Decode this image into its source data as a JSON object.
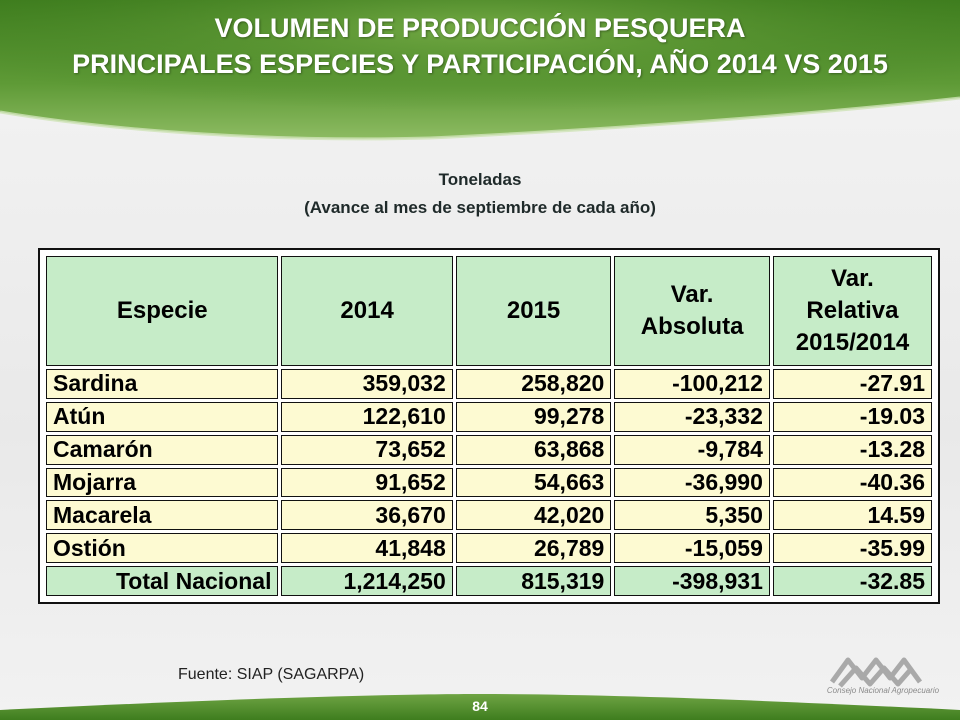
{
  "header": {
    "title_line1": "VOLUMEN DE PRODUCCIÓN PESQUERA",
    "title_line2": "PRINCIPALES ESPECIES Y PARTICIPACIÓN, AÑO 2014 VS 2015",
    "subtitle_line1": "Toneladas",
    "subtitle_line2": "(Avance al mes de septiembre de cada año)"
  },
  "table": {
    "headers": {
      "especie": "Especie",
      "y2014": "2014",
      "y2015": "2015",
      "var_abs_1": "Var.",
      "var_abs_2": "Absoluta",
      "var_rel_1": "Var.",
      "var_rel_2": "Relativa",
      "var_rel_3": "2015/2014"
    },
    "rows": [
      {
        "especie": "Sardina",
        "y2014": "359,032",
        "y2015": "258,820",
        "var_abs": "-100,212",
        "var_rel": "-27.91"
      },
      {
        "especie": "Atún",
        "y2014": "122,610",
        "y2015": "99,278",
        "var_abs": "-23,332",
        "var_rel": "-19.03"
      },
      {
        "especie": "Camarón",
        "y2014": "73,652",
        "y2015": "63,868",
        "var_abs": "-9,784",
        "var_rel": "-13.28"
      },
      {
        "especie": "Mojarra",
        "y2014": "91,652",
        "y2015": "54,663",
        "var_abs": "-36,990",
        "var_rel": "-40.36"
      },
      {
        "especie": "Macarela",
        "y2014": "36,670",
        "y2015": "42,020",
        "var_abs": "5,350",
        "var_rel": "14.59"
      },
      {
        "especie": "Ostión",
        "y2014": "41,848",
        "y2015": "26,789",
        "var_abs": "-15,059",
        "var_rel": "-35.99"
      }
    ],
    "total": {
      "especie": "Total Nacional",
      "y2014": "1,214,250",
      "y2015": "815,319",
      "var_abs": "-398,931",
      "var_rel": "-32.85"
    }
  },
  "footer": {
    "source": "Fuente: SIAP (SAGARPA)",
    "page_number": "84",
    "logo_text": "Consejo Nacional Agropecuario"
  },
  "colors": {
    "banner_green": "#4f8a2a",
    "header_cell": "#c6ecc8",
    "body_cell": "#fdfad2"
  }
}
